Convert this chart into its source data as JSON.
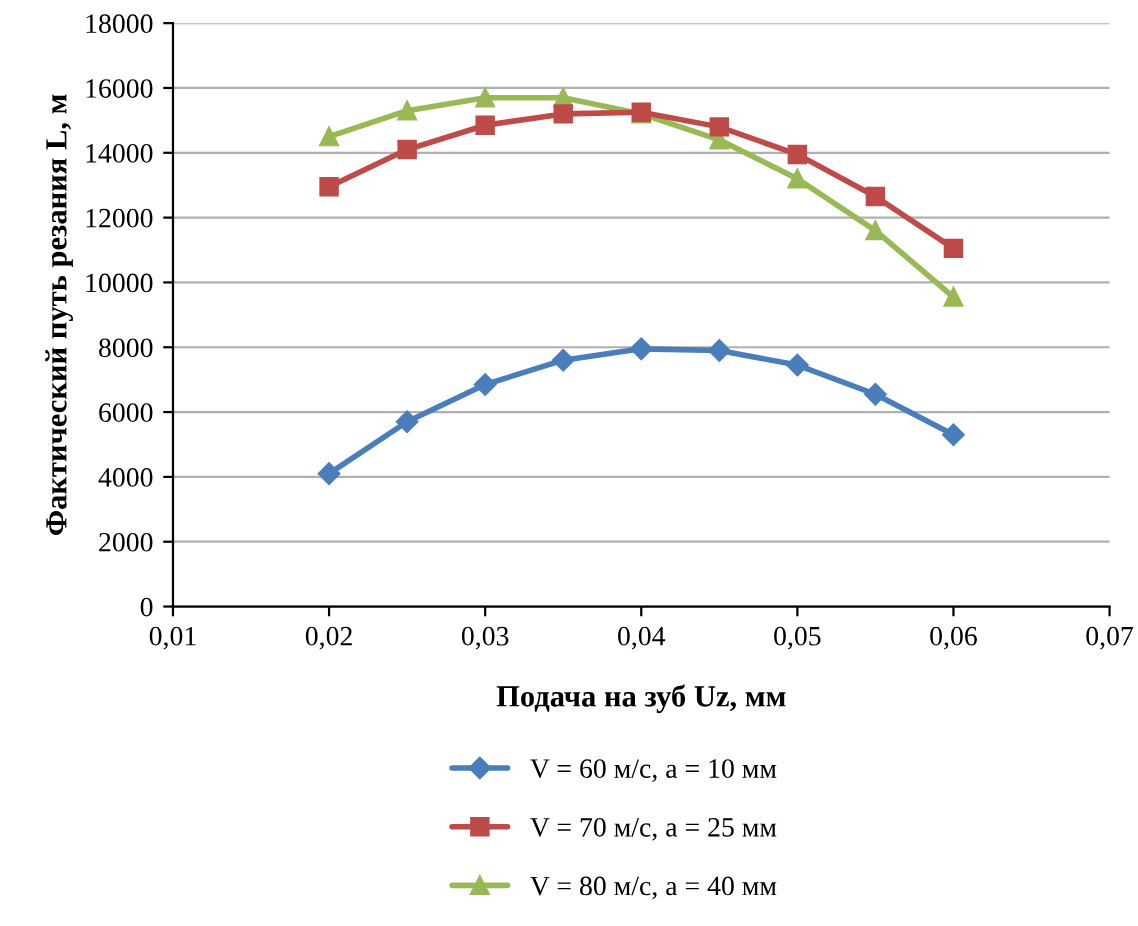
{
  "chart_data": {
    "type": "line",
    "xlabel": "Подача на зуб Uz, мм",
    "ylabel": "Фактический путь резания L, м",
    "x": [
      0.02,
      0.025,
      0.03,
      0.035,
      0.04,
      0.045,
      0.05,
      0.055,
      0.06
    ],
    "series": [
      {
        "name": "V = 60 м/с, a = 10 мм",
        "color": "#4a7ebb",
        "marker": "diamond",
        "values": [
          4100,
          5700,
          6850,
          7600,
          7950,
          7900,
          7450,
          6550,
          5300
        ]
      },
      {
        "name": "V = 70 м/с, a = 25 мм",
        "color": "#be4b48",
        "marker": "square",
        "values": [
          12950,
          14100,
          14850,
          15200,
          15250,
          14800,
          13950,
          12650,
          11050
        ]
      },
      {
        "name": "V = 80 м/с, a = 40 мм",
        "color": "#98b954",
        "marker": "triangle",
        "values": [
          14500,
          15300,
          15700,
          15700,
          15200,
          14400,
          13200,
          11600,
          9550
        ]
      }
    ],
    "xlim": [
      0.01,
      0.07
    ],
    "xticks": [
      {
        "value": 0.01,
        "label": "0,01"
      },
      {
        "value": 0.02,
        "label": "0,02"
      },
      {
        "value": 0.03,
        "label": "0,03"
      },
      {
        "value": 0.04,
        "label": "0,04"
      },
      {
        "value": 0.05,
        "label": "0,05"
      },
      {
        "value": 0.06,
        "label": "0,06"
      },
      {
        "value": 0.07,
        "label": "0,07"
      }
    ],
    "ylim": [
      0,
      18000
    ],
    "yticks": [
      0,
      2000,
      4000,
      6000,
      8000,
      10000,
      12000,
      14000,
      16000,
      18000
    ],
    "grid": "y",
    "legend": "bottom",
    "line_style": "solid"
  }
}
